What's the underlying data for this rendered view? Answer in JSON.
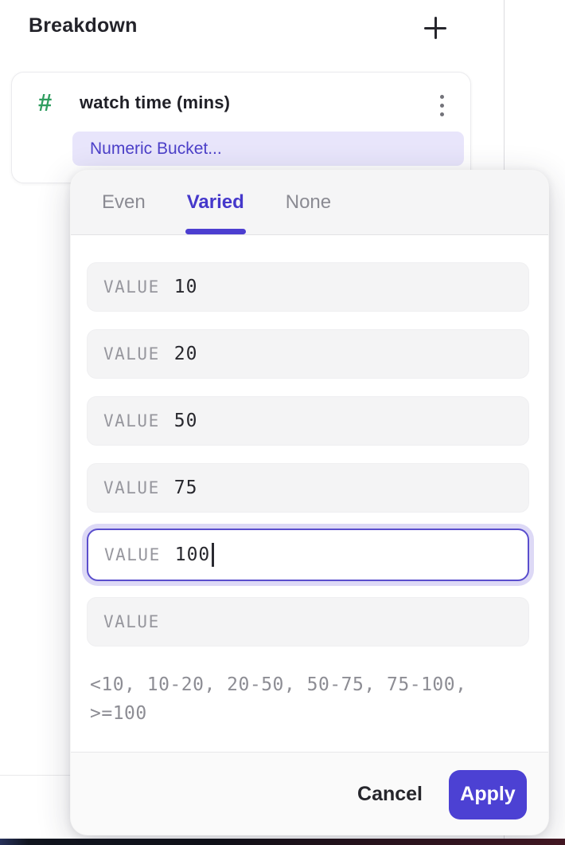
{
  "page": {
    "title": "Breakdown"
  },
  "breakdown_card": {
    "property_name": "watch time (mins)",
    "property_type_icon": "numeric-hash",
    "bucket_label": "Numeric Bucket..."
  },
  "bucket_popup": {
    "tabs": [
      {
        "label": "Even",
        "active": false
      },
      {
        "label": "Varied",
        "active": true
      },
      {
        "label": "None",
        "active": false
      }
    ],
    "fields": [
      {
        "label": "VALUE",
        "value": "10",
        "active": false
      },
      {
        "label": "VALUE",
        "value": "20",
        "active": false
      },
      {
        "label": "VALUE",
        "value": "50",
        "active": false
      },
      {
        "label": "VALUE",
        "value": "75",
        "active": false
      },
      {
        "label": "VALUE",
        "value": "100",
        "active": true
      },
      {
        "label": "VALUE",
        "value": "",
        "active": false
      }
    ],
    "preview_line1": "<10, 10-20, 20-50, 50-75, 75-100,",
    "preview_line2": ">=100",
    "cancel_label": "Cancel",
    "apply_label": "Apply"
  },
  "colors": {
    "accent_purple": "#4c41d3",
    "tab_active": "#4538cb",
    "pill_background": "#e8e5fb",
    "pill_text": "#4c40c9",
    "hash_green": "#2f9d5f",
    "field_background": "#f4f4f5",
    "active_field_border": "#5a4ecd",
    "active_field_halo": "#ddd9f6",
    "muted_text": "#8b8b93"
  }
}
